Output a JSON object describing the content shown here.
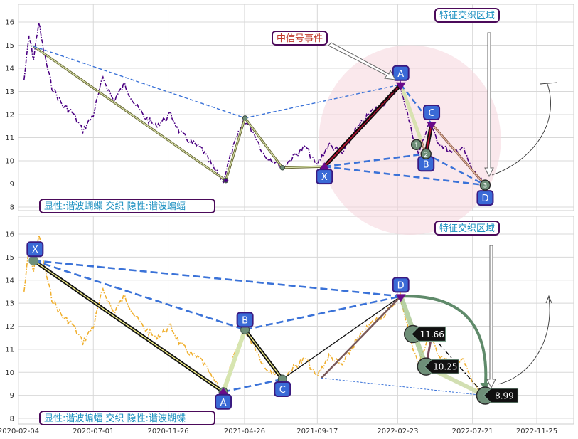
{
  "colors": {
    "top_price": "#4b0082",
    "bottom_price": "#f0b030",
    "dashed_blue": "#3a72d8",
    "point_box": "#3a6ad6",
    "point_box_border": "#3a1a80",
    "annotation_text": "#1a8fc0",
    "event_text": "#c0392b",
    "highlight_ellipse": "#f6d5dc"
  },
  "chart_data": [
    {
      "type": "line",
      "panel": "top",
      "ylim": [
        7.8,
        16.8
      ],
      "y_ticks": [
        8,
        9,
        10,
        11,
        12,
        13,
        14,
        15,
        16
      ],
      "x_range": [
        "2020-02-04",
        "2022-12-31"
      ],
      "grid": true,
      "series": [
        {
          "style": "dash-dot",
          "values": [
            [
              "2020-02-15",
              13.5
            ],
            [
              "2020-02-25",
              15.4
            ],
            [
              "2020-03-05",
              14.4
            ],
            [
              "2020-03-15",
              16.0
            ],
            [
              "2020-03-25",
              14.7
            ],
            [
              "2020-04-10",
              13.2
            ],
            [
              "2020-05-01",
              12.4
            ],
            [
              "2020-05-20",
              12.1
            ],
            [
              "2020-06-10",
              11.3
            ],
            [
              "2020-07-01",
              12.0
            ],
            [
              "2020-07-20",
              13.6
            ],
            [
              "2020-08-10",
              12.6
            ],
            [
              "2020-09-01",
              13.3
            ],
            [
              "2020-09-20",
              12.5
            ],
            [
              "2020-10-10",
              11.9
            ],
            [
              "2020-11-01",
              11.5
            ],
            [
              "2020-12-01",
              12.0
            ],
            [
              "2020-12-20",
              11.2
            ],
            [
              "2021-01-10",
              10.8
            ],
            [
              "2021-02-01",
              10.5
            ],
            [
              "2021-02-20",
              9.8
            ],
            [
              "2021-03-05",
              9.4
            ],
            [
              "2021-03-15",
              9.15
            ],
            [
              "2021-04-01",
              10.4
            ],
            [
              "2021-04-25",
              11.8
            ],
            [
              "2021-05-15",
              11.2
            ],
            [
              "2021-06-05",
              10.2
            ],
            [
              "2021-06-25",
              10.0
            ],
            [
              "2021-07-10",
              9.7
            ],
            [
              "2021-08-01",
              10.2
            ],
            [
              "2021-08-25",
              10.6
            ],
            [
              "2021-09-15",
              9.8
            ],
            [
              "2021-10-10",
              10.7
            ],
            [
              "2021-11-05",
              10.3
            ],
            [
              "2021-12-01",
              11.3
            ],
            [
              "2022-01-01",
              12.1
            ],
            [
              "2022-02-01",
              12.6
            ],
            [
              "2022-02-28",
              13.3
            ],
            [
              "2022-03-20",
              11.5
            ],
            [
              "2022-04-05",
              10.3
            ],
            [
              "2022-04-25",
              11.6
            ],
            [
              "2022-05-15",
              10.8
            ],
            [
              "2022-06-10",
              10.3
            ],
            [
              "2022-07-01",
              10.6
            ],
            [
              "2022-07-20",
              9.6
            ],
            [
              "2022-08-10",
              9.05
            ]
          ]
        }
      ],
      "zigzag": [
        [
          "2020-03-05",
          14.95
        ],
        [
          "2021-03-20",
          9.15
        ],
        [
          "2021-04-27",
          11.85
        ],
        [
          "2021-07-10",
          9.7
        ],
        [
          "2021-10-01",
          9.75
        ],
        [
          "2022-03-01",
          13.3
        ],
        [
          "2022-04-20",
          10.3
        ],
        [
          "2022-05-01",
          11.6
        ],
        [
          "2022-08-15",
          8.95
        ]
      ],
      "pattern_points": [
        {
          "label": "X",
          "date": "2021-10-01",
          "value": 9.75
        },
        {
          "label": "A",
          "date": "2022-03-01",
          "value": 13.3
        },
        {
          "label": "B",
          "date": "2022-04-20",
          "value": 10.3
        },
        {
          "label": "C",
          "date": "2022-05-01",
          "value": 11.6
        },
        {
          "label": "D",
          "date": "2022-08-15",
          "value": 8.95
        }
      ],
      "circle_markers": [
        {
          "label": "1",
          "date": "2022-04-01",
          "value": 10.7
        },
        {
          "label": "2",
          "date": "2022-04-20",
          "value": 10.3
        },
        {
          "label": "3",
          "date": "2022-08-15",
          "value": 8.95
        }
      ],
      "annotations": {
        "bottom_left": "显性:谐波蝴蝶 交织 隐性:谐波蝙蝠",
        "top_right": "特征交织区域",
        "event": "中信号事件"
      }
    },
    {
      "type": "line",
      "panel": "bottom",
      "ylim": [
        7.8,
        16.8
      ],
      "y_ticks": [
        8,
        9,
        10,
        11,
        12,
        13,
        14,
        15,
        16
      ],
      "x_ticks": [
        "2020-02-04",
        "2020-07-01",
        "2020-11-26",
        "2021-04-26",
        "2021-09-17",
        "2022-02-23",
        "2022-07-21",
        "2022-11-25"
      ],
      "grid": true,
      "series": [
        {
          "style": "dash-dot",
          "values": [
            [
              "2020-02-15",
              13.5
            ],
            [
              "2020-02-25",
              15.4
            ],
            [
              "2020-03-05",
              14.4
            ],
            [
              "2020-03-15",
              16.0
            ],
            [
              "2020-03-25",
              14.7
            ],
            [
              "2020-04-10",
              13.2
            ],
            [
              "2020-05-01",
              12.4
            ],
            [
              "2020-05-20",
              12.1
            ],
            [
              "2020-06-10",
              11.3
            ],
            [
              "2020-07-01",
              12.0
            ],
            [
              "2020-07-20",
              13.6
            ],
            [
              "2020-08-10",
              12.6
            ],
            [
              "2020-09-01",
              13.3
            ],
            [
              "2020-09-20",
              12.5
            ],
            [
              "2020-10-10",
              11.9
            ],
            [
              "2020-11-01",
              11.5
            ],
            [
              "2020-12-01",
              12.0
            ],
            [
              "2020-12-20",
              11.2
            ],
            [
              "2021-01-10",
              10.8
            ],
            [
              "2021-02-01",
              10.5
            ],
            [
              "2021-02-20",
              9.8
            ],
            [
              "2021-03-05",
              9.4
            ],
            [
              "2021-03-15",
              9.15
            ],
            [
              "2021-04-01",
              10.4
            ],
            [
              "2021-04-25",
              11.8
            ],
            [
              "2021-05-15",
              11.2
            ],
            [
              "2021-06-05",
              10.2
            ],
            [
              "2021-06-25",
              10.0
            ],
            [
              "2021-07-10",
              9.7
            ],
            [
              "2021-08-01",
              10.2
            ],
            [
              "2021-08-25",
              10.6
            ],
            [
              "2021-09-15",
              9.8
            ],
            [
              "2021-10-10",
              10.7
            ],
            [
              "2021-11-05",
              10.3
            ],
            [
              "2021-12-01",
              11.3
            ],
            [
              "2022-01-01",
              12.1
            ],
            [
              "2022-02-01",
              12.6
            ],
            [
              "2022-02-28",
              13.3
            ],
            [
              "2022-03-20",
              11.5
            ],
            [
              "2022-04-05",
              10.3
            ],
            [
              "2022-04-25",
              11.6
            ],
            [
              "2022-05-15",
              10.8
            ],
            [
              "2022-06-10",
              10.3
            ],
            [
              "2022-07-01",
              10.6
            ],
            [
              "2022-07-20",
              9.6
            ],
            [
              "2022-08-10",
              9.05
            ]
          ]
        }
      ],
      "zigzag": [
        [
          "2020-03-05",
          14.85
        ],
        [
          "2021-03-15",
          9.15
        ],
        [
          "2021-04-27",
          11.85
        ],
        [
          "2021-07-10",
          9.7
        ],
        [
          "2022-03-01",
          13.3
        ],
        [
          "2022-08-15",
          8.95
        ]
      ],
      "pattern_points": [
        {
          "label": "X",
          "date": "2020-03-05",
          "value": 14.85
        },
        {
          "label": "A",
          "date": "2021-03-15",
          "value": 9.15
        },
        {
          "label": "B",
          "date": "2021-04-27",
          "value": 11.85
        },
        {
          "label": "C",
          "date": "2021-07-10",
          "value": 9.7
        },
        {
          "label": "D",
          "date": "2022-03-01",
          "value": 13.3
        }
      ],
      "price_labels": [
        {
          "text": "11.66",
          "date": "2022-03-25",
          "value": 11.66
        },
        {
          "text": "10.25",
          "date": "2022-04-20",
          "value": 10.25
        },
        {
          "text": "8.99",
          "date": "2022-08-15",
          "value": 8.99
        }
      ],
      "annotations": {
        "bottom_left": "显性:谐波蝙蝠 交织 隐性:谐波蝴蝶",
        "top_right": "特征交织区域"
      }
    }
  ]
}
